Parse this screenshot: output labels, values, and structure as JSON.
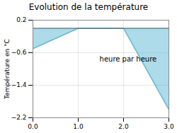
{
  "chart_data": {
    "type": "area",
    "title": "Evolution de la température",
    "ylabel": "Température en °C",
    "annotation": "heure par heure",
    "x": [
      0,
      1,
      2,
      3
    ],
    "values": [
      -0.5,
      0.0,
      0.0,
      -2.0
    ],
    "baseline": 0.0,
    "color": "#5bb8d4",
    "xlim": [
      0,
      3
    ],
    "ylim": [
      -2.2,
      0.2
    ],
    "xticks": [
      0,
      1,
      2,
      3
    ],
    "yticks": [
      0.2,
      -0.6,
      -1.4,
      -2.2
    ],
    "grid": true
  }
}
